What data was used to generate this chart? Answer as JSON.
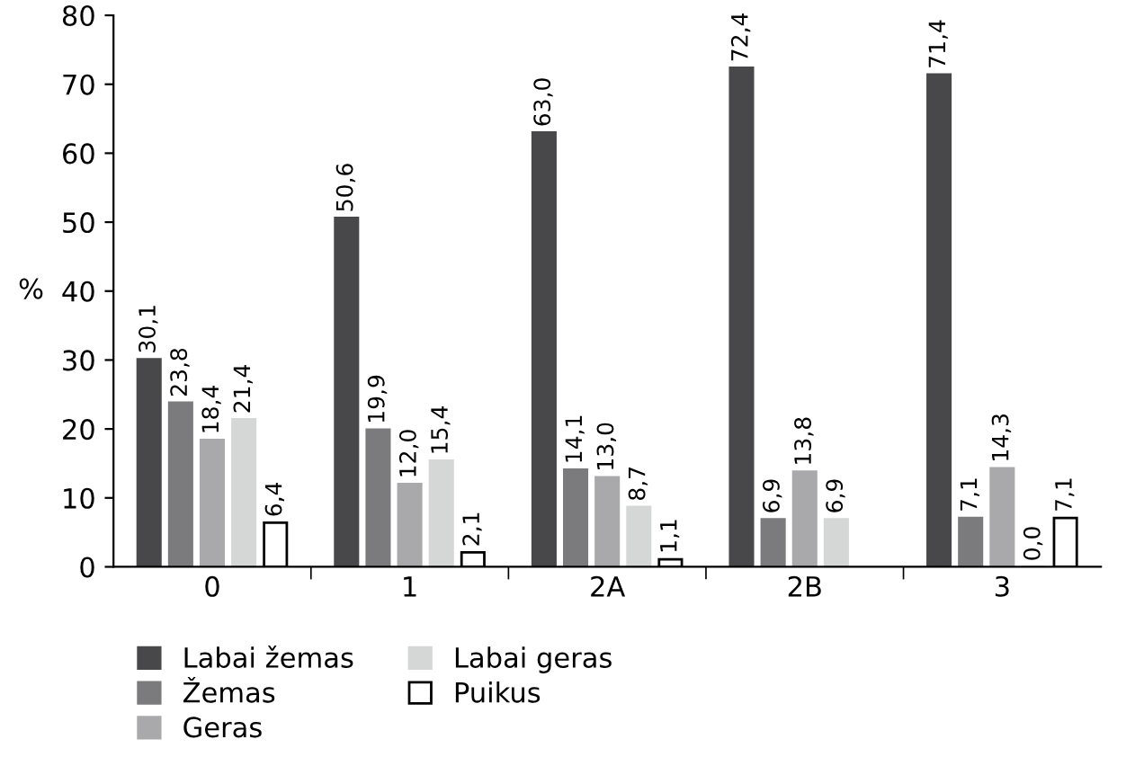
{
  "chart_data": {
    "type": "bar",
    "ylabel": "%",
    "categories": [
      "0",
      "1",
      "2A",
      "2B",
      "3"
    ],
    "series": [
      {
        "name": "Labai žemas",
        "color": "#48484a",
        "values": [
          30.1,
          50.6,
          63.0,
          72.4,
          71.4
        ],
        "value_labels": [
          "30,1",
          "50,6",
          "63,0",
          "72,4",
          "71,4"
        ]
      },
      {
        "name": "Žemas",
        "color": "#7b7b7d",
        "values": [
          23.8,
          19.9,
          14.1,
          6.9,
          7.1
        ],
        "value_labels": [
          "23,8",
          "19,9",
          "14,1",
          "6,9",
          "7,1"
        ]
      },
      {
        "name": "Geras",
        "color": "#a9a9ab",
        "values": [
          18.4,
          12.0,
          13.0,
          13.8,
          14.3
        ],
        "value_labels": [
          "18,4",
          "12,0",
          "13,0",
          "13,8",
          "14,3"
        ]
      },
      {
        "name": "Labai geras",
        "color": "#d5d7d7",
        "values": [
          21.4,
          15.4,
          8.7,
          6.9,
          0.0
        ],
        "value_labels": [
          "21,4",
          "15,4",
          "8,7",
          "6,9",
          "0,0"
        ]
      },
      {
        "name": "Puikus",
        "color": "#ffffff",
        "values": [
          6.4,
          2.1,
          1.1,
          null,
          7.1
        ],
        "value_labels": [
          "6,4",
          "2,1",
          "1,1",
          null,
          "7,1"
        ]
      }
    ],
    "ylim": [
      0,
      80
    ],
    "yticks": [
      0,
      10,
      20,
      30,
      40,
      50,
      60,
      70,
      80
    ],
    "grid": false,
    "legend": "bottom"
  }
}
